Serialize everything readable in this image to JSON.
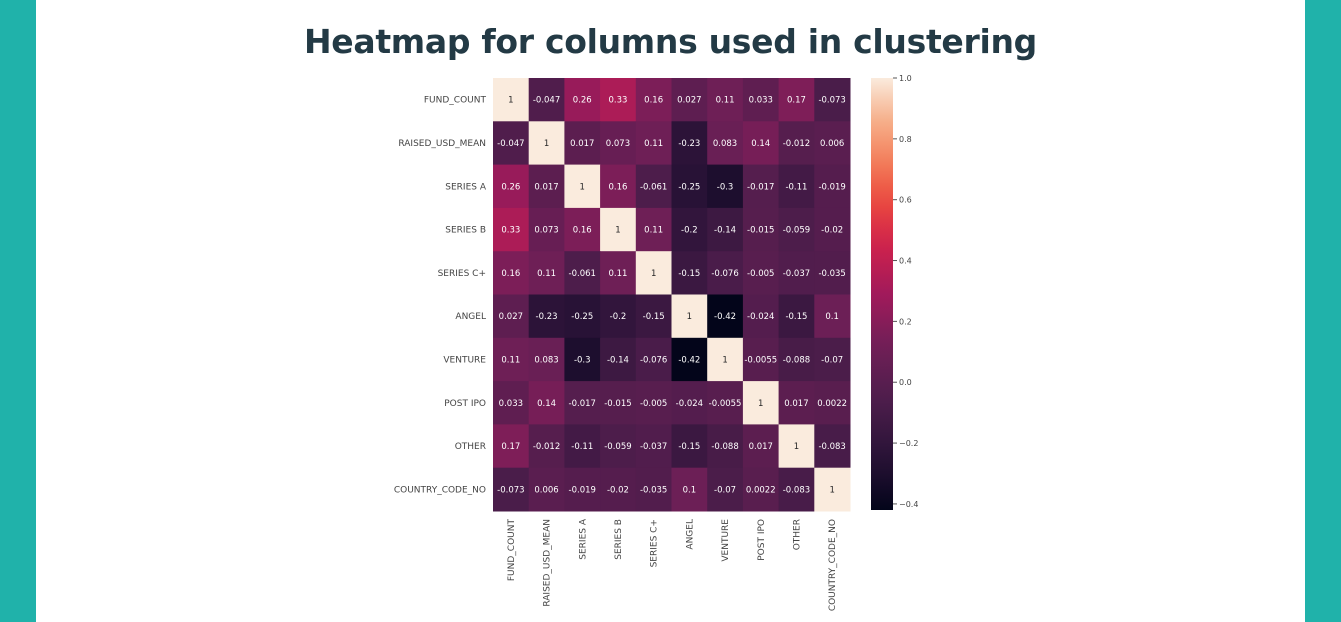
{
  "page": {
    "title": "Heatmap for columns used in clustering",
    "colors": {
      "background": "#20b2aa",
      "panel": "#ffffff",
      "title": "#233a45"
    }
  },
  "chart_data": {
    "type": "heatmap",
    "title": "",
    "labels": [
      "FUND_COUNT",
      "RAISED_USD_MEAN",
      "SERIES A",
      "SERIES B",
      "SERIES C+",
      "ANGEL",
      "VENTURE",
      "POST IPO",
      "OTHER",
      "COUNTRY_CODE_NO"
    ],
    "matrix": [
      [
        "1",
        "-0.047",
        "0.26",
        "0.33",
        "0.16",
        "0.027",
        "0.11",
        "0.033",
        "0.17",
        "-0.073"
      ],
      [
        "-0.047",
        "1",
        "0.017",
        "0.073",
        "0.11",
        "-0.23",
        "0.083",
        "0.14",
        "-0.012",
        "0.006"
      ],
      [
        "0.26",
        "0.017",
        "1",
        "0.16",
        "-0.061",
        "-0.25",
        "-0.3",
        "-0.017",
        "-0.11",
        "-0.019"
      ],
      [
        "0.33",
        "0.073",
        "0.16",
        "1",
        "0.11",
        "-0.2",
        "-0.14",
        "-0.015",
        "-0.059",
        "-0.02"
      ],
      [
        "0.16",
        "0.11",
        "-0.061",
        "0.11",
        "1",
        "-0.15",
        "-0.076",
        "-0.005",
        "-0.037",
        "-0.035"
      ],
      [
        "0.027",
        "-0.23",
        "-0.25",
        "-0.2",
        "-0.15",
        "1",
        "-0.42",
        "-0.024",
        "-0.15",
        "0.1"
      ],
      [
        "0.11",
        "0.083",
        "-0.3",
        "-0.14",
        "-0.076",
        "-0.42",
        "1",
        "-0.0055",
        "-0.088",
        "-0.07"
      ],
      [
        "0.033",
        "0.14",
        "-0.017",
        "-0.015",
        "-0.005",
        "-0.024",
        "-0.0055",
        "1",
        "0.017",
        "0.0022"
      ],
      [
        "0.17",
        "-0.012",
        "-0.11",
        "-0.059",
        "-0.037",
        "-0.15",
        "-0.088",
        "0.017",
        "1",
        "-0.083"
      ],
      [
        "-0.073",
        "0.006",
        "-0.019",
        "-0.02",
        "-0.035",
        "0.1",
        "-0.07",
        "0.0022",
        "-0.083",
        "1"
      ]
    ],
    "vmin": -0.42,
    "vmax": 1.0,
    "colorbar_ticks": [
      "1.0",
      "0.8",
      "0.6",
      "0.4",
      "0.2",
      "0.0",
      "-0.2",
      "-0.4"
    ],
    "colormap": "rocket",
    "grid": false,
    "legend_position": "right"
  }
}
